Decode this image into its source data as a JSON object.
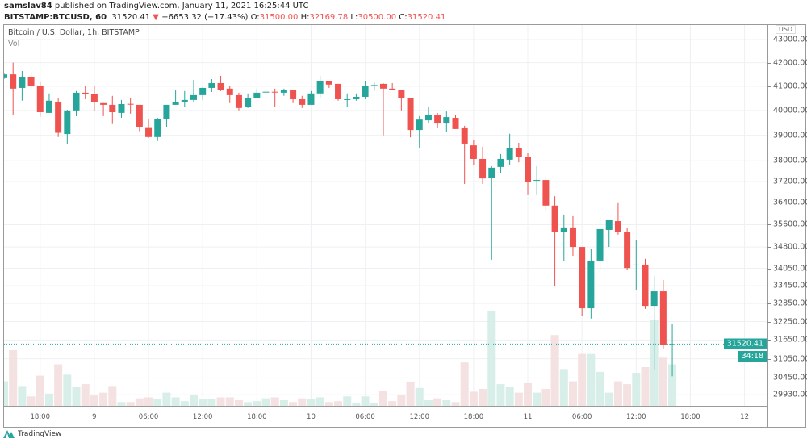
{
  "header": {
    "author": "samslav84",
    "published_text": "published on TradingView.com, January 11, 2021 16:25:44 UTC",
    "symbol": "BITSTAMP:BTCUSD, 60",
    "last_price": "31520.41",
    "change_arrow": "▼",
    "change": "−6653.32 (−17.43%)",
    "open_label": "O:",
    "open": "31500.00",
    "high_label": "H:",
    "high": "32169.78",
    "low_label": "L:",
    "low": "30500.00",
    "close_label": "C:",
    "close": "31520.41"
  },
  "chart": {
    "title": "Bitcoin / U.S. Dollar, 1h, BITSTAMP",
    "volume_label": "Vol",
    "currency": "USD",
    "current_price_label": "31520.41",
    "countdown": "34:18",
    "colors": {
      "up": "#26a69a",
      "down": "#ef5350",
      "up_volume": "#d4ece7",
      "down_volume": "#f3dede",
      "grid": "#eef0f3"
    }
  },
  "price_axis": {
    "scale": "log",
    "ticks": [
      "43000.00",
      "42000.00",
      "41000.00",
      "40000.00",
      "39000.00",
      "38000.00",
      "37200.00",
      "36400.00",
      "35600.00",
      "34800.00",
      "34050.00",
      "33450.00",
      "32850.00",
      "32250.00",
      "31650.00",
      "31050.00",
      "30450.00",
      "29930.00"
    ]
  },
  "time_axis": {
    "labels": [
      "18:00",
      "9",
      "06:00",
      "12:00",
      "18:00",
      "10",
      "06:00",
      "12:00",
      "18:00",
      "11",
      "06:00",
      "12:00",
      "18:00",
      "12"
    ]
  },
  "footer": {
    "brand": "TradingView"
  },
  "chart_data": {
    "type": "candlestick",
    "interval": "1h",
    "y_scale": "log",
    "ylim": [
      29930,
      43000
    ],
    "volume_units": "relative (% of largest bar)",
    "candles": [
      {
        "t": "2021-01-08 14:00",
        "o": 41340,
        "h": 41550,
        "l": 41300,
        "c": 41500,
        "v": 26
      },
      {
        "t": "2021-01-08 15:00",
        "o": 41500,
        "h": 42000,
        "l": 39800,
        "c": 40900,
        "v": 59
      },
      {
        "t": "2021-01-08 16:00",
        "o": 40930,
        "h": 41640,
        "l": 40400,
        "c": 41370,
        "v": 21
      },
      {
        "t": "2021-01-08 17:00",
        "o": 41370,
        "h": 41600,
        "l": 40900,
        "c": 41030,
        "v": 10
      },
      {
        "t": "2021-01-08 18:00",
        "o": 41030,
        "h": 41170,
        "l": 39740,
        "c": 39930,
        "v": 32
      },
      {
        "t": "2021-01-08 19:00",
        "o": 39900,
        "h": 40700,
        "l": 39900,
        "c": 40400,
        "v": 13
      },
      {
        "t": "2021-01-08 20:00",
        "o": 40330,
        "h": 40500,
        "l": 38930,
        "c": 39100,
        "v": 44
      },
      {
        "t": "2021-01-08 21:00",
        "o": 39050,
        "h": 40030,
        "l": 38650,
        "c": 40000,
        "v": 33
      },
      {
        "t": "2021-01-08 22:00",
        "o": 40000,
        "h": 40800,
        "l": 39770,
        "c": 40730,
        "v": 20
      },
      {
        "t": "2021-01-08 23:00",
        "o": 40730,
        "h": 41000,
        "l": 40460,
        "c": 40660,
        "v": 23
      },
      {
        "t": "2021-01-09 00:00",
        "o": 40660,
        "h": 41000,
        "l": 39970,
        "c": 40330,
        "v": 11
      },
      {
        "t": "2021-01-09 01:00",
        "o": 40300,
        "h": 40300,
        "l": 39770,
        "c": 40230,
        "v": 14
      },
      {
        "t": "2021-01-09 02:00",
        "o": 40230,
        "h": 40600,
        "l": 39450,
        "c": 39930,
        "v": 21
      },
      {
        "t": "2021-01-09 03:00",
        "o": 39900,
        "h": 40430,
        "l": 39700,
        "c": 40260,
        "v": 4
      },
      {
        "t": "2021-01-09 04:00",
        "o": 40270,
        "h": 40500,
        "l": 39870,
        "c": 40240,
        "v": 4
      },
      {
        "t": "2021-01-09 05:00",
        "o": 40230,
        "h": 40230,
        "l": 39160,
        "c": 39320,
        "v": 8
      },
      {
        "t": "2021-01-09 06:00",
        "o": 39290,
        "h": 39640,
        "l": 38900,
        "c": 38930,
        "v": 9
      },
      {
        "t": "2021-01-09 07:00",
        "o": 38930,
        "h": 39700,
        "l": 38770,
        "c": 39640,
        "v": 7
      },
      {
        "t": "2021-01-09 08:00",
        "o": 39640,
        "h": 40230,
        "l": 39320,
        "c": 40230,
        "v": 14
      },
      {
        "t": "2021-01-09 09:00",
        "o": 40230,
        "h": 40830,
        "l": 40230,
        "c": 40330,
        "v": 9
      },
      {
        "t": "2021-01-09 10:00",
        "o": 40360,
        "h": 40800,
        "l": 40160,
        "c": 40430,
        "v": 5
      },
      {
        "t": "2021-01-09 11:00",
        "o": 40430,
        "h": 41270,
        "l": 40330,
        "c": 40630,
        "v": 12
      },
      {
        "t": "2021-01-09 12:00",
        "o": 40630,
        "h": 40960,
        "l": 40430,
        "c": 40930,
        "v": 7
      },
      {
        "t": "2021-01-09 13:00",
        "o": 40930,
        "h": 41300,
        "l": 40760,
        "c": 41130,
        "v": 7
      },
      {
        "t": "2021-01-09 14:00",
        "o": 41130,
        "h": 41440,
        "l": 40800,
        "c": 40860,
        "v": 9
      },
      {
        "t": "2021-01-09 15:00",
        "o": 40900,
        "h": 41030,
        "l": 40300,
        "c": 40630,
        "v": 9
      },
      {
        "t": "2021-01-09 16:00",
        "o": 40630,
        "h": 40730,
        "l": 40000,
        "c": 40100,
        "v": 6
      },
      {
        "t": "2021-01-09 17:00",
        "o": 40130,
        "h": 40700,
        "l": 40100,
        "c": 40500,
        "v": 4
      },
      {
        "t": "2021-01-09 18:00",
        "o": 40500,
        "h": 40900,
        "l": 40500,
        "c": 40730,
        "v": 5
      },
      {
        "t": "2021-01-09 19:00",
        "o": 40750,
        "h": 40960,
        "l": 40560,
        "c": 40770,
        "v": 8
      },
      {
        "t": "2021-01-09 20:00",
        "o": 40770,
        "h": 40900,
        "l": 40130,
        "c": 40740,
        "v": 9
      },
      {
        "t": "2021-01-09 21:00",
        "o": 40730,
        "h": 40900,
        "l": 40600,
        "c": 40830,
        "v": 6
      },
      {
        "t": "2021-01-09 22:00",
        "o": 40860,
        "h": 40860,
        "l": 40300,
        "c": 40460,
        "v": 4
      },
      {
        "t": "2021-01-09 23:00",
        "o": 40460,
        "h": 40600,
        "l": 40100,
        "c": 40230,
        "v": 8
      },
      {
        "t": "2021-01-10 00:00",
        "o": 40230,
        "h": 40800,
        "l": 40230,
        "c": 40700,
        "v": 7
      },
      {
        "t": "2021-01-10 01:00",
        "o": 40700,
        "h": 41440,
        "l": 40530,
        "c": 41230,
        "v": 9
      },
      {
        "t": "2021-01-10 02:00",
        "o": 41230,
        "h": 41230,
        "l": 40930,
        "c": 41070,
        "v": 4
      },
      {
        "t": "2021-01-10 03:00",
        "o": 41100,
        "h": 41100,
        "l": 40400,
        "c": 40460,
        "v": 5
      },
      {
        "t": "2021-01-10 04:00",
        "o": 40440,
        "h": 40700,
        "l": 40130,
        "c": 40460,
        "v": 10
      },
      {
        "t": "2021-01-10 05:00",
        "o": 40460,
        "h": 40700,
        "l": 40400,
        "c": 40560,
        "v": 3
      },
      {
        "t": "2021-01-10 06:00",
        "o": 40560,
        "h": 41200,
        "l": 40460,
        "c": 41030,
        "v": 10
      },
      {
        "t": "2021-01-10 07:00",
        "o": 41030,
        "h": 41160,
        "l": 40800,
        "c": 41050,
        "v": 3
      },
      {
        "t": "2021-01-10 08:00",
        "o": 41100,
        "h": 41130,
        "l": 39000,
        "c": 40900,
        "v": 16
      },
      {
        "t": "2021-01-10 09:00",
        "o": 40900,
        "h": 41130,
        "l": 40830,
        "c": 40830,
        "v": 5
      },
      {
        "t": "2021-01-10 10:00",
        "o": 40830,
        "h": 40830,
        "l": 40000,
        "c": 40500,
        "v": 12
      },
      {
        "t": "2021-01-10 11:00",
        "o": 40500,
        "h": 40500,
        "l": 38920,
        "c": 39210,
        "v": 25
      },
      {
        "t": "2021-01-10 12:00",
        "o": 39210,
        "h": 39770,
        "l": 38500,
        "c": 39630,
        "v": 19
      },
      {
        "t": "2021-01-10 13:00",
        "o": 39600,
        "h": 40160,
        "l": 39500,
        "c": 39830,
        "v": 6
      },
      {
        "t": "2021-01-10 14:00",
        "o": 39830,
        "h": 39900,
        "l": 39280,
        "c": 39470,
        "v": 8
      },
      {
        "t": "2021-01-10 15:00",
        "o": 39470,
        "h": 39960,
        "l": 39150,
        "c": 39730,
        "v": 6
      },
      {
        "t": "2021-01-10 16:00",
        "o": 39700,
        "h": 39800,
        "l": 39250,
        "c": 39250,
        "v": 4
      },
      {
        "t": "2021-01-10 17:00",
        "o": 39280,
        "h": 39380,
        "l": 37110,
        "c": 38670,
        "v": 46
      },
      {
        "t": "2021-01-10 18:00",
        "o": 38600,
        "h": 38830,
        "l": 37850,
        "c": 38070,
        "v": 15
      },
      {
        "t": "2021-01-10 19:00",
        "o": 38070,
        "h": 38540,
        "l": 37110,
        "c": 37320,
        "v": 18
      },
      {
        "t": "2021-01-10 20:00",
        "o": 37350,
        "h": 37790,
        "l": 34350,
        "c": 37730,
        "v": 100
      },
      {
        "t": "2021-01-10 21:00",
        "o": 37760,
        "h": 38260,
        "l": 37510,
        "c": 38070,
        "v": 23
      },
      {
        "t": "2021-01-10 22:00",
        "o": 38040,
        "h": 39060,
        "l": 37850,
        "c": 38480,
        "v": 20
      },
      {
        "t": "2021-01-10 23:00",
        "o": 38480,
        "h": 38700,
        "l": 37940,
        "c": 38160,
        "v": 14
      },
      {
        "t": "2021-01-11 00:00",
        "o": 38160,
        "h": 38290,
        "l": 36690,
        "c": 37200,
        "v": 24
      },
      {
        "t": "2021-01-11 01:00",
        "o": 37230,
        "h": 37790,
        "l": 36690,
        "c": 37260,
        "v": 14
      },
      {
        "t": "2021-01-11 02:00",
        "o": 37260,
        "h": 37390,
        "l": 36115,
        "c": 36300,
        "v": 18
      },
      {
        "t": "2021-01-11 03:00",
        "o": 36300,
        "h": 36650,
        "l": 33450,
        "c": 35350,
        "v": 75
      },
      {
        "t": "2021-01-11 04:00",
        "o": 35350,
        "h": 35970,
        "l": 34290,
        "c": 35500,
        "v": 39
      },
      {
        "t": "2021-01-11 05:00",
        "o": 35500,
        "h": 35910,
        "l": 34490,
        "c": 34800,
        "v": 26
      },
      {
        "t": "2021-01-11 06:00",
        "o": 34800,
        "h": 34800,
        "l": 32430,
        "c": 32690,
        "v": 55
      },
      {
        "t": "2021-01-11 07:00",
        "o": 32690,
        "h": 34720,
        "l": 32350,
        "c": 34320,
        "v": 55
      },
      {
        "t": "2021-01-11 08:00",
        "o": 34320,
        "h": 35880,
        "l": 33990,
        "c": 35440,
        "v": 36
      },
      {
        "t": "2021-01-11 09:00",
        "o": 35410,
        "h": 35760,
        "l": 34800,
        "c": 35760,
        "v": 14
      },
      {
        "t": "2021-01-11 10:00",
        "o": 35730,
        "h": 36420,
        "l": 35240,
        "c": 35350,
        "v": 26
      },
      {
        "t": "2021-01-11 11:00",
        "o": 35350,
        "h": 35470,
        "l": 33990,
        "c": 34060,
        "v": 23
      },
      {
        "t": "2021-01-11 12:00",
        "o": 34150,
        "h": 35060,
        "l": 33290,
        "c": 34180,
        "v": 35
      },
      {
        "t": "2021-01-11 13:00",
        "o": 34180,
        "h": 34380,
        "l": 32670,
        "c": 32770,
        "v": 41
      },
      {
        "t": "2021-01-11 14:00",
        "o": 32770,
        "h": 33790,
        "l": 30710,
        "c": 33260,
        "v": 91
      },
      {
        "t": "2021-01-11 15:00",
        "o": 33260,
        "h": 33650,
        "l": 31350,
        "c": 31500,
        "v": 51
      },
      {
        "t": "2021-01-11 16:00",
        "o": 31500,
        "h": 32169.78,
        "l": 30500,
        "c": 31520.41,
        "v": 44
      }
    ],
    "current_price": 31520.41
  }
}
